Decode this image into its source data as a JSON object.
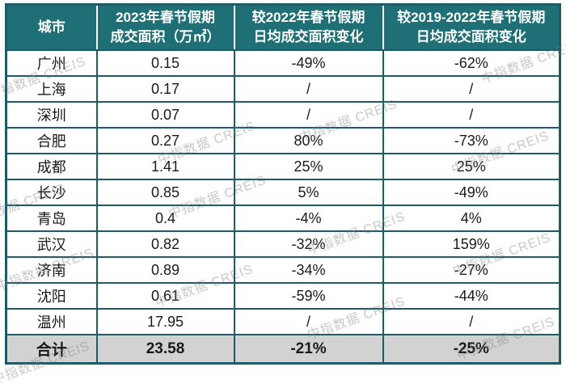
{
  "chart_data": {
    "type": "table",
    "columns": [
      "城市",
      "2023年春节假期成交面积（万㎡）",
      "较2022年春节假期日均成交面积变化",
      "较2019-2022年春节假期日均成交面积变化"
    ],
    "header_lines": [
      [
        "城市",
        ""
      ],
      [
        "2023年春节假期",
        "成交面积（万㎡）"
      ],
      [
        "较2022年春节假期",
        "日均成交面积变化"
      ],
      [
        "较2019-2022年春节假期",
        "日均成交面积变化"
      ]
    ],
    "rows": [
      {
        "city": "广州",
        "area": "0.15",
        "vs_2022": "-49%",
        "vs_2019_2022": "-62%"
      },
      {
        "city": "上海",
        "area": "0.17",
        "vs_2022": "/",
        "vs_2019_2022": "/"
      },
      {
        "city": "深圳",
        "area": "0.07",
        "vs_2022": "/",
        "vs_2019_2022": "/"
      },
      {
        "city": "合肥",
        "area": "0.27",
        "vs_2022": "80%",
        "vs_2019_2022": "-73%"
      },
      {
        "city": "成都",
        "area": "1.41",
        "vs_2022": "25%",
        "vs_2019_2022": "25%"
      },
      {
        "city": "长沙",
        "area": "0.85",
        "vs_2022": "5%",
        "vs_2019_2022": "-49%"
      },
      {
        "city": "青岛",
        "area": "0.4",
        "vs_2022": "-4%",
        "vs_2019_2022": "4%"
      },
      {
        "city": "武汉",
        "area": "0.82",
        "vs_2022": "-32%",
        "vs_2019_2022": "159%"
      },
      {
        "city": "济南",
        "area": "0.89",
        "vs_2022": "-34%",
        "vs_2019_2022": "-27%"
      },
      {
        "city": "沈阳",
        "area": "0.61",
        "vs_2022": "-59%",
        "vs_2019_2022": "-44%"
      },
      {
        "city": "温州",
        "area": "17.95",
        "vs_2022": "/",
        "vs_2019_2022": "/"
      }
    ],
    "total": {
      "city": "合计",
      "area": "23.58",
      "vs_2022": "-21%",
      "vs_2019_2022": "-25%"
    },
    "watermark_text": "中指数据 CREIS",
    "colors": {
      "header_bg": "#1E7076",
      "header_text": "#ffffff",
      "grid_line": "#1E5B66",
      "total_row_bg": "#d2d2d2",
      "body_text": "#1a1a1a",
      "watermark": "#7d7d7d"
    }
  }
}
